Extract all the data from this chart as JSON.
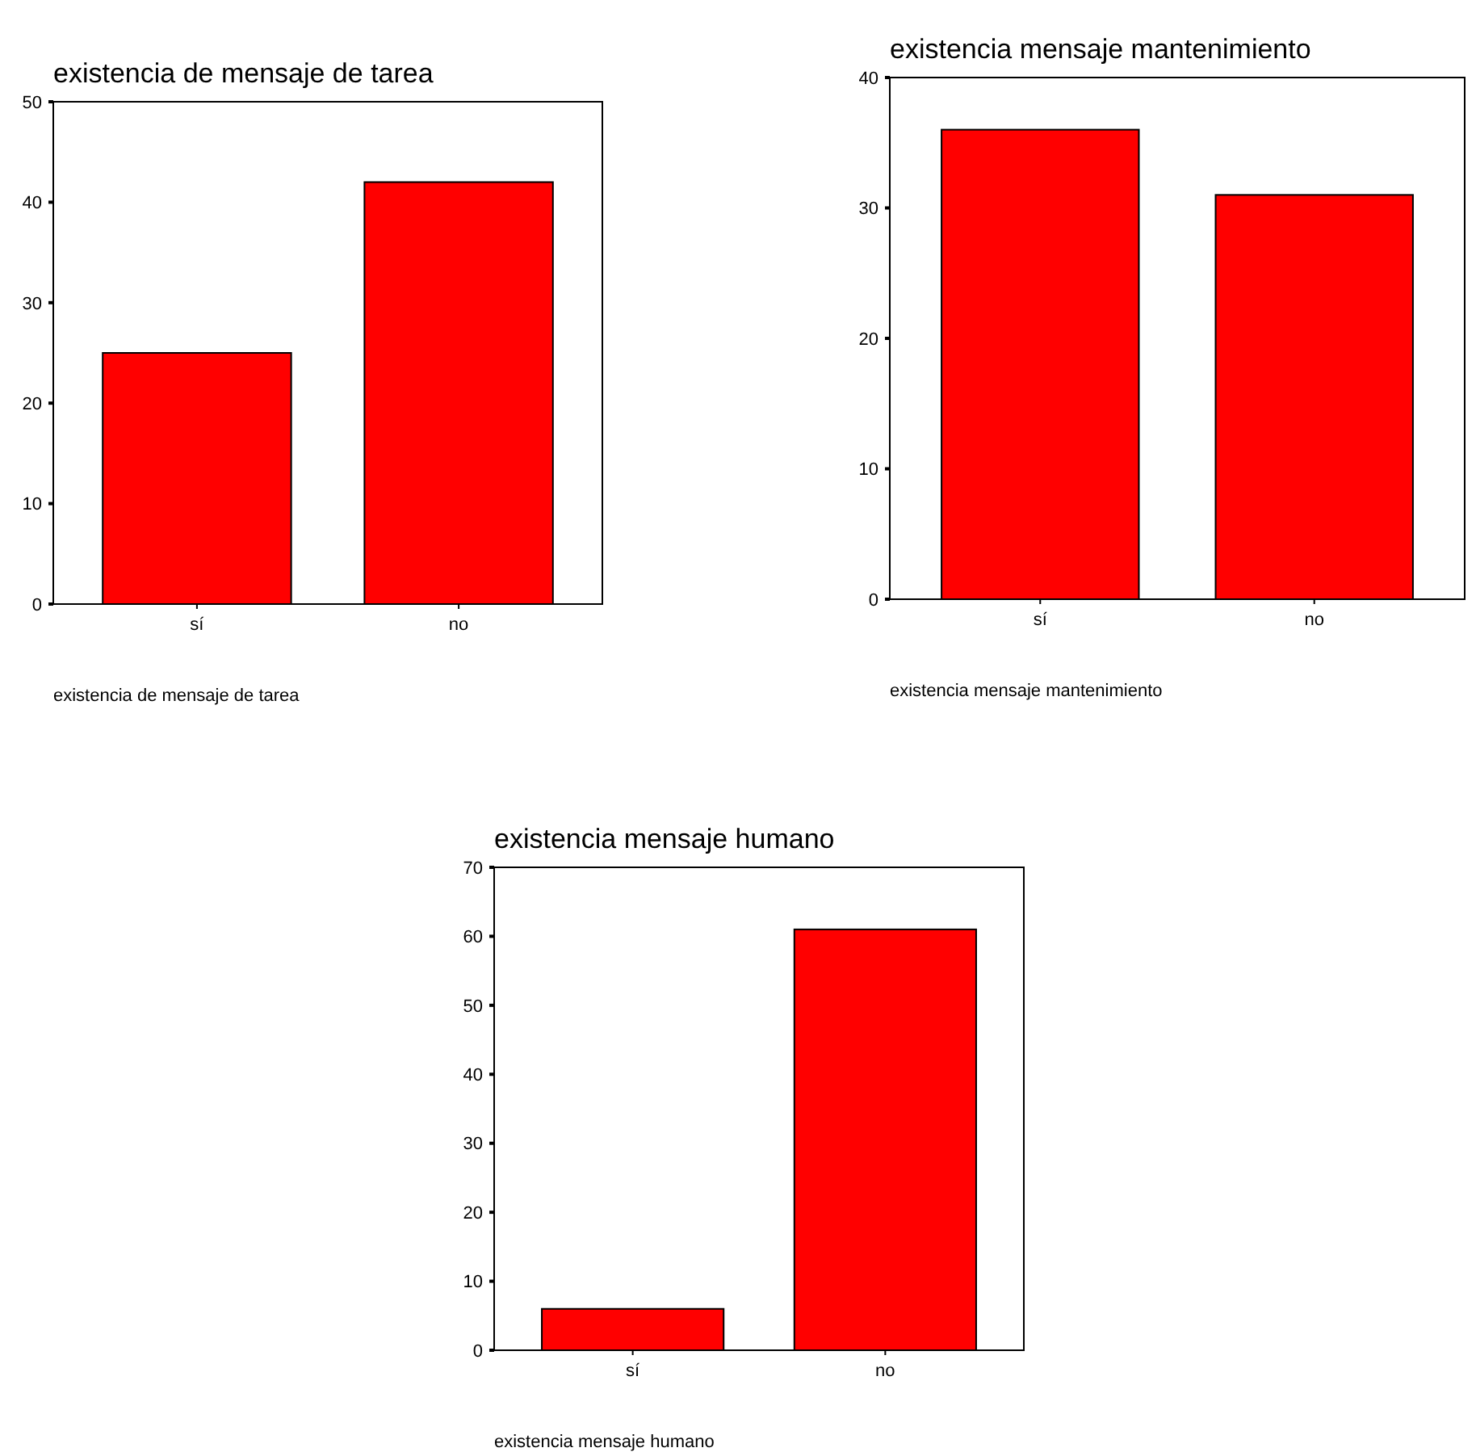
{
  "chart_data": [
    {
      "type": "bar",
      "title": "existencia de mensaje de tarea",
      "xlabel": "existencia de mensaje de tarea",
      "categories": [
        "sí",
        "no"
      ],
      "values": [
        25,
        42
      ],
      "color": "#ff0000",
      "ylim": [
        0,
        50
      ],
      "yticks": [
        0,
        10,
        20,
        30,
        40,
        50
      ],
      "grid": false
    },
    {
      "type": "bar",
      "title": "existencia mensaje mantenimiento",
      "xlabel": "existencia mensaje mantenimiento",
      "categories": [
        "sí",
        "no"
      ],
      "values": [
        36,
        31
      ],
      "color": "#ff0000",
      "ylim": [
        0,
        40
      ],
      "yticks": [
        0,
        10,
        20,
        30,
        40
      ],
      "grid": false
    },
    {
      "type": "bar",
      "title": "existencia mensaje humano",
      "xlabel": "existencia mensaje humano",
      "categories": [
        "sí",
        "no"
      ],
      "values": [
        6,
        61
      ],
      "color": "#ff0000",
      "ylim": [
        0,
        70
      ],
      "yticks": [
        0,
        10,
        20,
        30,
        40,
        50,
        60,
        70
      ],
      "grid": false
    }
  ]
}
